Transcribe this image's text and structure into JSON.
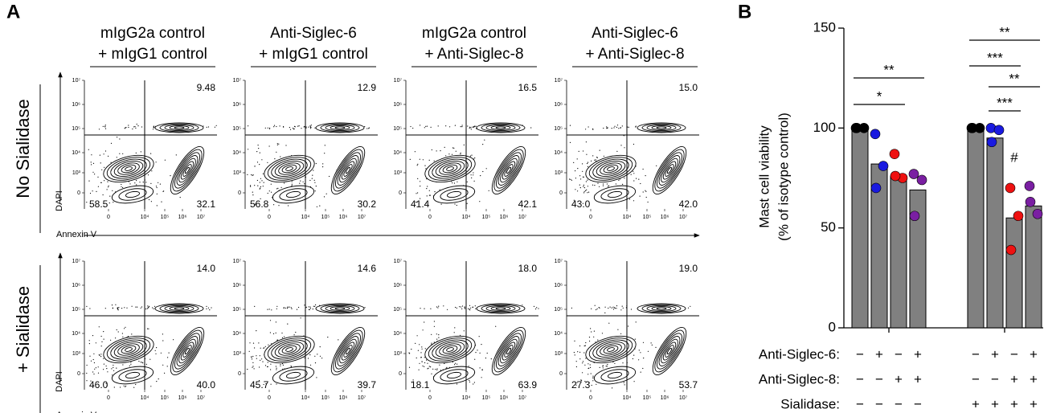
{
  "panel_a": {
    "label": "A",
    "columns": [
      [
        "mIgG2a control",
        "+ mIgG1 control"
      ],
      [
        "Anti-Siglec-6",
        "+ mIgG1 control"
      ],
      [
        "mIgG2a control",
        "+ Anti-Siglec-8"
      ],
      [
        "Anti-Siglec-6",
        "+ Anti-Siglec-8"
      ]
    ],
    "rows": [
      "No Sialidase",
      "+ Sialidase"
    ],
    "y_label": "DAPI",
    "x_label": "Annexin V",
    "y_tick_labels": [
      "10⁷",
      "10⁶",
      "10⁵",
      "10⁴",
      "10³",
      "0"
    ],
    "x_tick_labels": [
      "0",
      "10⁴",
      "10⁵",
      "10⁶",
      "10⁷"
    ],
    "plots": [
      [
        {
          "upper_right": "9.48",
          "lower_left": "58.5",
          "lower_right": "32.1"
        },
        {
          "upper_right": "12.9",
          "lower_left": "56.8",
          "lower_right": "30.2"
        },
        {
          "upper_right": "16.5",
          "lower_left": "41.4",
          "lower_right": "42.1"
        },
        {
          "upper_right": "15.0",
          "lower_left": "43.0",
          "lower_right": "42.0"
        }
      ],
      [
        {
          "upper_right": "14.0",
          "lower_left": "46.0",
          "lower_right": "40.0"
        },
        {
          "upper_right": "14.6",
          "lower_left": "45.7",
          "lower_right": "39.7"
        },
        {
          "upper_right": "18.0",
          "lower_left": "18.1",
          "lower_right": "63.9"
        },
        {
          "upper_right": "19.0",
          "lower_left": "27.3",
          "lower_right": "53.7"
        }
      ]
    ]
  },
  "chart_data": {
    "type": "bar",
    "label": "B",
    "ylabel": [
      "Mast cell viability",
      "(% of isotype control)"
    ],
    "values": [
      100,
      82,
      76,
      69,
      100,
      95,
      55,
      61
    ],
    "color": "#808080",
    "points": [
      {
        "color": "#000000",
        "values": [
          100,
          100,
          100
        ]
      },
      {
        "color": "#1a1ae0",
        "values": [
          97,
          81,
          70
        ]
      },
      {
        "color": "#ee1111",
        "values": [
          87,
          75,
          76
        ]
      },
      {
        "color": "#7a1fa2",
        "values": [
          77,
          74,
          56
        ]
      },
      {
        "color": "#000000",
        "values": [
          100,
          100,
          100
        ]
      },
      {
        "color": "#1a1ae0",
        "values": [
          100,
          99,
          93
        ]
      },
      {
        "color": "#ee1111",
        "values": [
          70,
          56,
          39
        ]
      },
      {
        "color": "#7a1fa2",
        "values": [
          71,
          57,
          63
        ]
      }
    ],
    "ylim": [
      0,
      150
    ],
    "yticks": [
      0,
      50,
      100,
      150
    ],
    "conditions": [
      {
        "label": "Anti-Siglec-6:",
        "signs": [
          "−",
          "+",
          "−",
          "+",
          "−",
          "+",
          "−",
          "+"
        ]
      },
      {
        "label": "Anti-Siglec-8:",
        "signs": [
          "−",
          "−",
          "+",
          "+",
          "−",
          "−",
          "+",
          "+"
        ]
      },
      {
        "label": "Sialidase:",
        "signs": [
          "−",
          "−",
          "−",
          "−",
          "+",
          "+",
          "+",
          "+"
        ]
      }
    ],
    "brackets": [
      {
        "text": "*",
        "bars": [
          0,
          2
        ]
      },
      {
        "text": "**",
        "bars": [
          0,
          3
        ]
      },
      {
        "text": "**",
        "bars": [
          4,
          7
        ]
      },
      {
        "text": "***",
        "bars": [
          4,
          6
        ]
      },
      {
        "text": "**",
        "bars": [
          5,
          7
        ]
      },
      {
        "text": "***",
        "bars": [
          5,
          6
        ]
      }
    ],
    "annotations": [
      {
        "text": "#",
        "bar": 6
      }
    ]
  }
}
